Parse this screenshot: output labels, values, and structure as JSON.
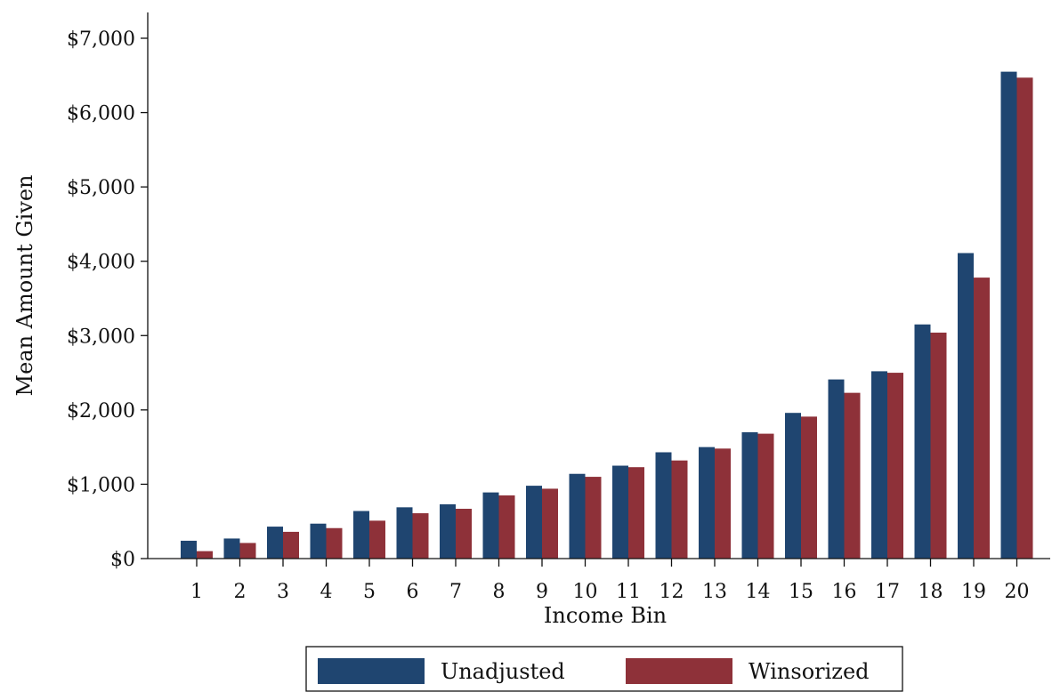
{
  "chart_data": {
    "type": "bar",
    "title": "",
    "xlabel": "Income Bin",
    "ylabel": "Mean Amount Given",
    "categories": [
      "1",
      "2",
      "3",
      "4",
      "5",
      "6",
      "7",
      "8",
      "9",
      "10",
      "11",
      "12",
      "13",
      "14",
      "15",
      "16",
      "17",
      "18",
      "19",
      "20"
    ],
    "series": [
      {
        "name": "Unadjusted",
        "color": "#1f4570",
        "values": [
          240,
          270,
          430,
          470,
          640,
          690,
          730,
          890,
          980,
          1140,
          1250,
          1430,
          1500,
          1700,
          1960,
          2410,
          2520,
          3150,
          4110,
          6550
        ]
      },
      {
        "name": "Winsorized",
        "color": "#8e3139",
        "values": [
          100,
          210,
          360,
          410,
          510,
          610,
          670,
          850,
          940,
          1100,
          1230,
          1320,
          1480,
          1680,
          1910,
          2230,
          2500,
          3040,
          3780,
          6470
        ]
      }
    ],
    "ylim": [
      0,
      7000
    ],
    "yticks": [
      0,
      1000,
      2000,
      3000,
      4000,
      5000,
      6000,
      7000
    ],
    "ytick_labels": [
      "$0",
      "$1,000",
      "$2,000",
      "$3,000",
      "$4,000",
      "$5,000",
      "$6,000",
      "$7,000"
    ],
    "grid": false,
    "legend_position": "bottom"
  }
}
